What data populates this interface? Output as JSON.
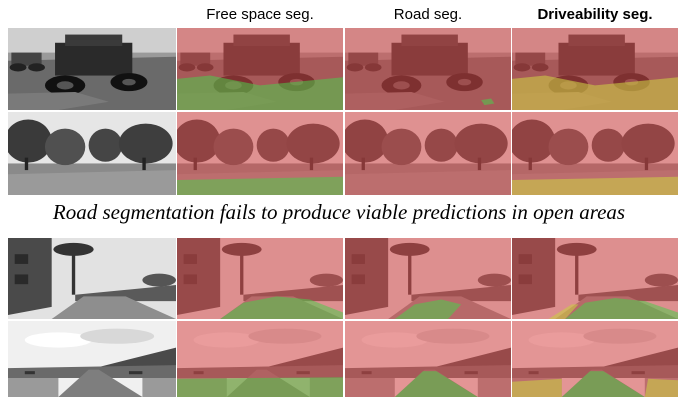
{
  "column_titles": [
    {
      "label": "",
      "bold": false
    },
    {
      "label": "Free space seg.",
      "bold": false
    },
    {
      "label": "Road seg.",
      "bold": false
    },
    {
      "label": "Driveability seg.",
      "bold": true
    }
  ],
  "caption": "Road segmentation fails to produce viable predictions in open areas",
  "overlay_colors": {
    "not_driveable": "#d94a4a",
    "driveable": "#4ccc4c",
    "conditionally_driveable": "#cccc44"
  },
  "rows": [
    {
      "scene": "off-road vehicle in muddy field"
    },
    {
      "scene": "open field with trees"
    },
    {
      "scene": "street with palm tree and buildings"
    },
    {
      "scene": "highway with hills and sky"
    }
  ]
}
